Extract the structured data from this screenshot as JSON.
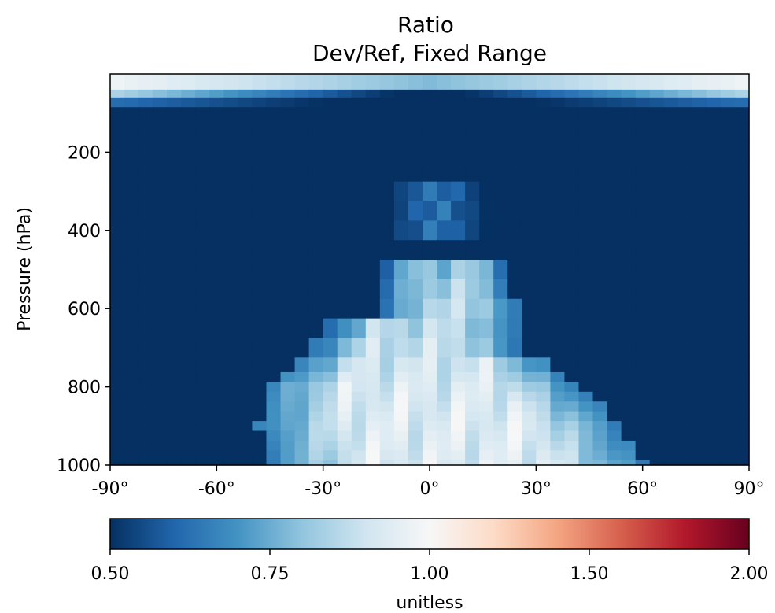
{
  "chart_data": {
    "type": "heatmap",
    "title": "Ratio",
    "subtitle": "Dev/Ref, Fixed Range",
    "xlabel": "",
    "ylabel": "Pressure (hPa)",
    "xlim": [
      -90,
      90
    ],
    "ylim": [
      1000,
      0
    ],
    "x_ticks": [
      {
        "value": -90,
        "label": "-90°"
      },
      {
        "value": -60,
        "label": "-60°"
      },
      {
        "value": -30,
        "label": "-30°"
      },
      {
        "value": 0,
        "label": "0°"
      },
      {
        "value": 30,
        "label": "30°"
      },
      {
        "value": 60,
        "label": "60°"
      },
      {
        "value": 90,
        "label": "90°"
      }
    ],
    "y_ticks": [
      {
        "value": 200,
        "label": "200"
      },
      {
        "value": 400,
        "label": "400"
      },
      {
        "value": 600,
        "label": "600"
      },
      {
        "value": 800,
        "label": "800"
      },
      {
        "value": 1000,
        "label": "1000"
      }
    ],
    "colorbar": {
      "label": "unitless",
      "colormap": "RdBu_r",
      "ticks": [
        {
          "value": 0.5,
          "label": "0.50"
        },
        {
          "value": 0.75,
          "label": "0.75"
        },
        {
          "value": 1.0,
          "label": "1.00"
        },
        {
          "value": 1.5,
          "label": "1.50"
        },
        {
          "value": 2.0,
          "label": "2.00"
        }
      ],
      "colors": [
        "#053061",
        "#2166ac",
        "#4393c3",
        "#92c5de",
        "#d1e5f0",
        "#f7f7f7",
        "#fddbc7",
        "#f4a582",
        "#d6604d",
        "#b2182b",
        "#67001f"
      ],
      "color_positions": [
        0.0,
        0.1,
        0.2,
        0.3,
        0.4,
        0.5,
        0.6,
        0.7,
        0.8,
        0.9,
        1.0
      ]
    },
    "lat_range": [
      -90,
      90
    ],
    "lat_step": 4,
    "levels": [
      30,
      50,
      70,
      100,
      150,
      200,
      250,
      300,
      350,
      400,
      450,
      500,
      550,
      600,
      650,
      700,
      750,
      775,
      800,
      825,
      850,
      875,
      900,
      925,
      950,
      975,
      1000
    ],
    "plume_base": [
      {
        "level": 300,
        "lo": -8,
        "hi": 14,
        "v": 0.62
      },
      {
        "level": 450,
        "lo": -8,
        "hi": 20,
        "v": 0.66
      },
      {
        "level": 500,
        "lo": -12,
        "hi": 22,
        "v": 0.8
      },
      {
        "level": 600,
        "lo": -12,
        "hi": 24,
        "v": 0.85
      },
      {
        "level": 650,
        "lo": -28,
        "hi": 24,
        "v": 0.86
      },
      {
        "level": 700,
        "lo": -32,
        "hi": 24,
        "v": 0.88
      },
      {
        "level": 750,
        "lo": -38,
        "hi": 34,
        "v": 0.9
      },
      {
        "level": 800,
        "lo": -46,
        "hi": 42,
        "v": 0.92
      },
      {
        "level": 900,
        "lo": -48,
        "hi": 54,
        "v": 0.93
      },
      {
        "level": 1000,
        "lo": -46,
        "hi": 60,
        "v": 0.93
      }
    ],
    "top_layer": [
      {
        "level": 30,
        "lat_abs": 90,
        "v": 0.95
      },
      {
        "level": 50,
        "lat_abs": 90,
        "v": 0.75
      },
      {
        "level": 50,
        "lat_abs": 45,
        "v": 0.6
      },
      {
        "level": 70,
        "lat_abs": 90,
        "v": 0.6
      },
      {
        "level": 70,
        "lat_abs": 30,
        "v": 0.5
      }
    ]
  }
}
